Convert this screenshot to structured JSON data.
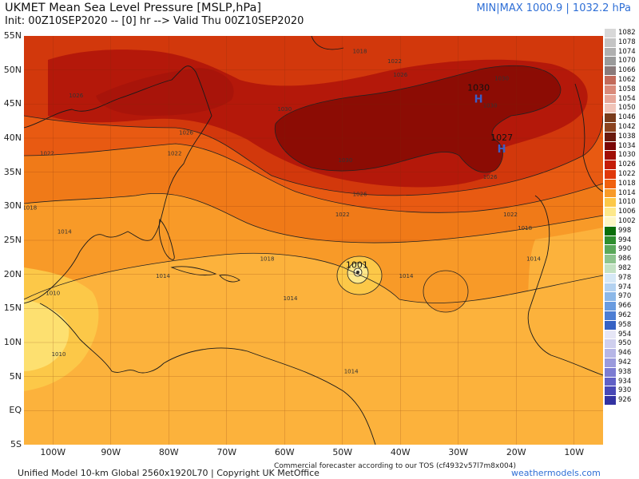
{
  "header": {
    "title": "UKMET Mean Sea Level Pressure [MSLP,hPa]",
    "init": "Init: 00Z10SEP2020 -- [0] hr --> Valid Thu 00Z10SEP2020",
    "minmax": "MIN|MAX 1000.9 | 1032.2 hPa"
  },
  "axes": {
    "lat_labels": [
      "55N",
      "50N",
      "45N",
      "40N",
      "35N",
      "30N",
      "25N",
      "20N",
      "15N",
      "10N",
      "5N",
      "EQ",
      "5S"
    ],
    "lon_labels": [
      "100W",
      "90W",
      "80W",
      "70W",
      "60W",
      "50W",
      "40W",
      "30W",
      "20W",
      "10W"
    ]
  },
  "centers": [
    {
      "name": "high-1030",
      "pressure": "1030",
      "symbol": "H",
      "lat": 45.8,
      "lon": -26.5
    },
    {
      "name": "high-1027",
      "pressure": "1027",
      "symbol": "H",
      "lat": 38.5,
      "lon": -22.5
    },
    {
      "name": "low-1001",
      "pressure": "1001",
      "symbol": "",
      "lat": 20.0,
      "lon": -47.5
    }
  ],
  "isobar_labels": [
    {
      "text": "1018",
      "lat": 52.5,
      "lon": -47
    },
    {
      "text": "1022",
      "lat": 51,
      "lon": -41
    },
    {
      "text": "1026",
      "lat": 49,
      "lon": -40
    },
    {
      "text": "1030",
      "lat": 48.5,
      "lon": -22.5
    },
    {
      "text": "1026",
      "lat": 46,
      "lon": -96
    },
    {
      "text": "1030",
      "lat": 44,
      "lon": -60
    },
    {
      "text": "1030",
      "lat": 44.5,
      "lon": -24.5
    },
    {
      "text": "1026",
      "lat": 40.5,
      "lon": -77
    },
    {
      "text": "1022",
      "lat": 37.5,
      "lon": -79
    },
    {
      "text": "1022",
      "lat": 37.5,
      "lon": -101
    },
    {
      "text": "1030",
      "lat": 36.5,
      "lon": -49.5
    },
    {
      "text": "1026",
      "lat": 31.5,
      "lon": -47
    },
    {
      "text": "1026",
      "lat": 34,
      "lon": -24.5
    },
    {
      "text": "1022",
      "lat": 28.5,
      "lon": -50
    },
    {
      "text": "1022",
      "lat": 28.5,
      "lon": -21
    },
    {
      "text": "1018",
      "lat": 29.5,
      "lon": -104
    },
    {
      "text": "1014",
      "lat": 26,
      "lon": -98
    },
    {
      "text": "1018",
      "lat": 26.5,
      "lon": -18.5
    },
    {
      "text": "1018",
      "lat": 22,
      "lon": -63
    },
    {
      "text": "1014",
      "lat": 22,
      "lon": -17
    },
    {
      "text": "1014",
      "lat": 19.5,
      "lon": -81
    },
    {
      "text": "1014",
      "lat": 19.5,
      "lon": -39
    },
    {
      "text": "1010",
      "lat": 17,
      "lon": -100
    },
    {
      "text": "1014",
      "lat": 16.2,
      "lon": -59
    },
    {
      "text": "1010",
      "lat": 8,
      "lon": -99
    },
    {
      "text": "1014",
      "lat": 5.5,
      "lon": -48.5
    }
  ],
  "legend": {
    "levels": [
      {
        "value": "1082",
        "color": "#d8d8d8"
      },
      {
        "value": "1078",
        "color": "#c4c4c4"
      },
      {
        "value": "1074",
        "color": "#b0b0b0"
      },
      {
        "value": "1070",
        "color": "#9a9a9a"
      },
      {
        "value": "1066",
        "color": "#8a7a7a"
      },
      {
        "value": "1062",
        "color": "#c26a5a"
      },
      {
        "value": "1058",
        "color": "#d98a7a"
      },
      {
        "value": "1054",
        "color": "#e6a698"
      },
      {
        "value": "1050",
        "color": "#f0c4b8"
      },
      {
        "value": "1046",
        "color": "#7a3c1c"
      },
      {
        "value": "1042",
        "color": "#8c4420"
      },
      {
        "value": "1038",
        "color": "#6a1a0e"
      },
      {
        "value": "1034",
        "color": "#7a0606"
      },
      {
        "value": "1030",
        "color": "#a00e06"
      },
      {
        "value": "1026",
        "color": "#c41c08"
      },
      {
        "value": "1022",
        "color": "#e0380a"
      },
      {
        "value": "1018",
        "color": "#f0600e"
      },
      {
        "value": "1014",
        "color": "#f89a28"
      },
      {
        "value": "1010",
        "color": "#fcc848"
      },
      {
        "value": "1006",
        "color": "#fde88a"
      },
      {
        "value": "1002",
        "color": "#fdf6c4"
      },
      {
        "value": "998",
        "color": "#0a6e0a"
      },
      {
        "value": "994",
        "color": "#2e8e2e"
      },
      {
        "value": "990",
        "color": "#5aa85a"
      },
      {
        "value": "986",
        "color": "#8ec48e"
      },
      {
        "value": "982",
        "color": "#c4e2c4"
      },
      {
        "value": "978",
        "color": "#d6e8f6"
      },
      {
        "value": "974",
        "color": "#b4d2f0"
      },
      {
        "value": "970",
        "color": "#8cb8e8"
      },
      {
        "value": "966",
        "color": "#6a9ce0"
      },
      {
        "value": "962",
        "color": "#4c7ed4"
      },
      {
        "value": "958",
        "color": "#3662c4"
      },
      {
        "value": "954",
        "color": "#e6e6f6"
      },
      {
        "value": "950",
        "color": "#cfcfee"
      },
      {
        "value": "946",
        "color": "#b6b6e6"
      },
      {
        "value": "942",
        "color": "#9a9adc"
      },
      {
        "value": "938",
        "color": "#7c7cd2"
      },
      {
        "value": "934",
        "color": "#6060c6"
      },
      {
        "value": "930",
        "color": "#4848b6"
      },
      {
        "value": "926",
        "color": "#3232a2"
      }
    ]
  },
  "footer": {
    "model": "Unified Model 10-km Global 2560x1920L70 | Copyright UK MetOffice",
    "tos": "Commercial forecaster according to our TOS (cf4932v57l7m8x004)",
    "site": "weathermodels.com"
  }
}
